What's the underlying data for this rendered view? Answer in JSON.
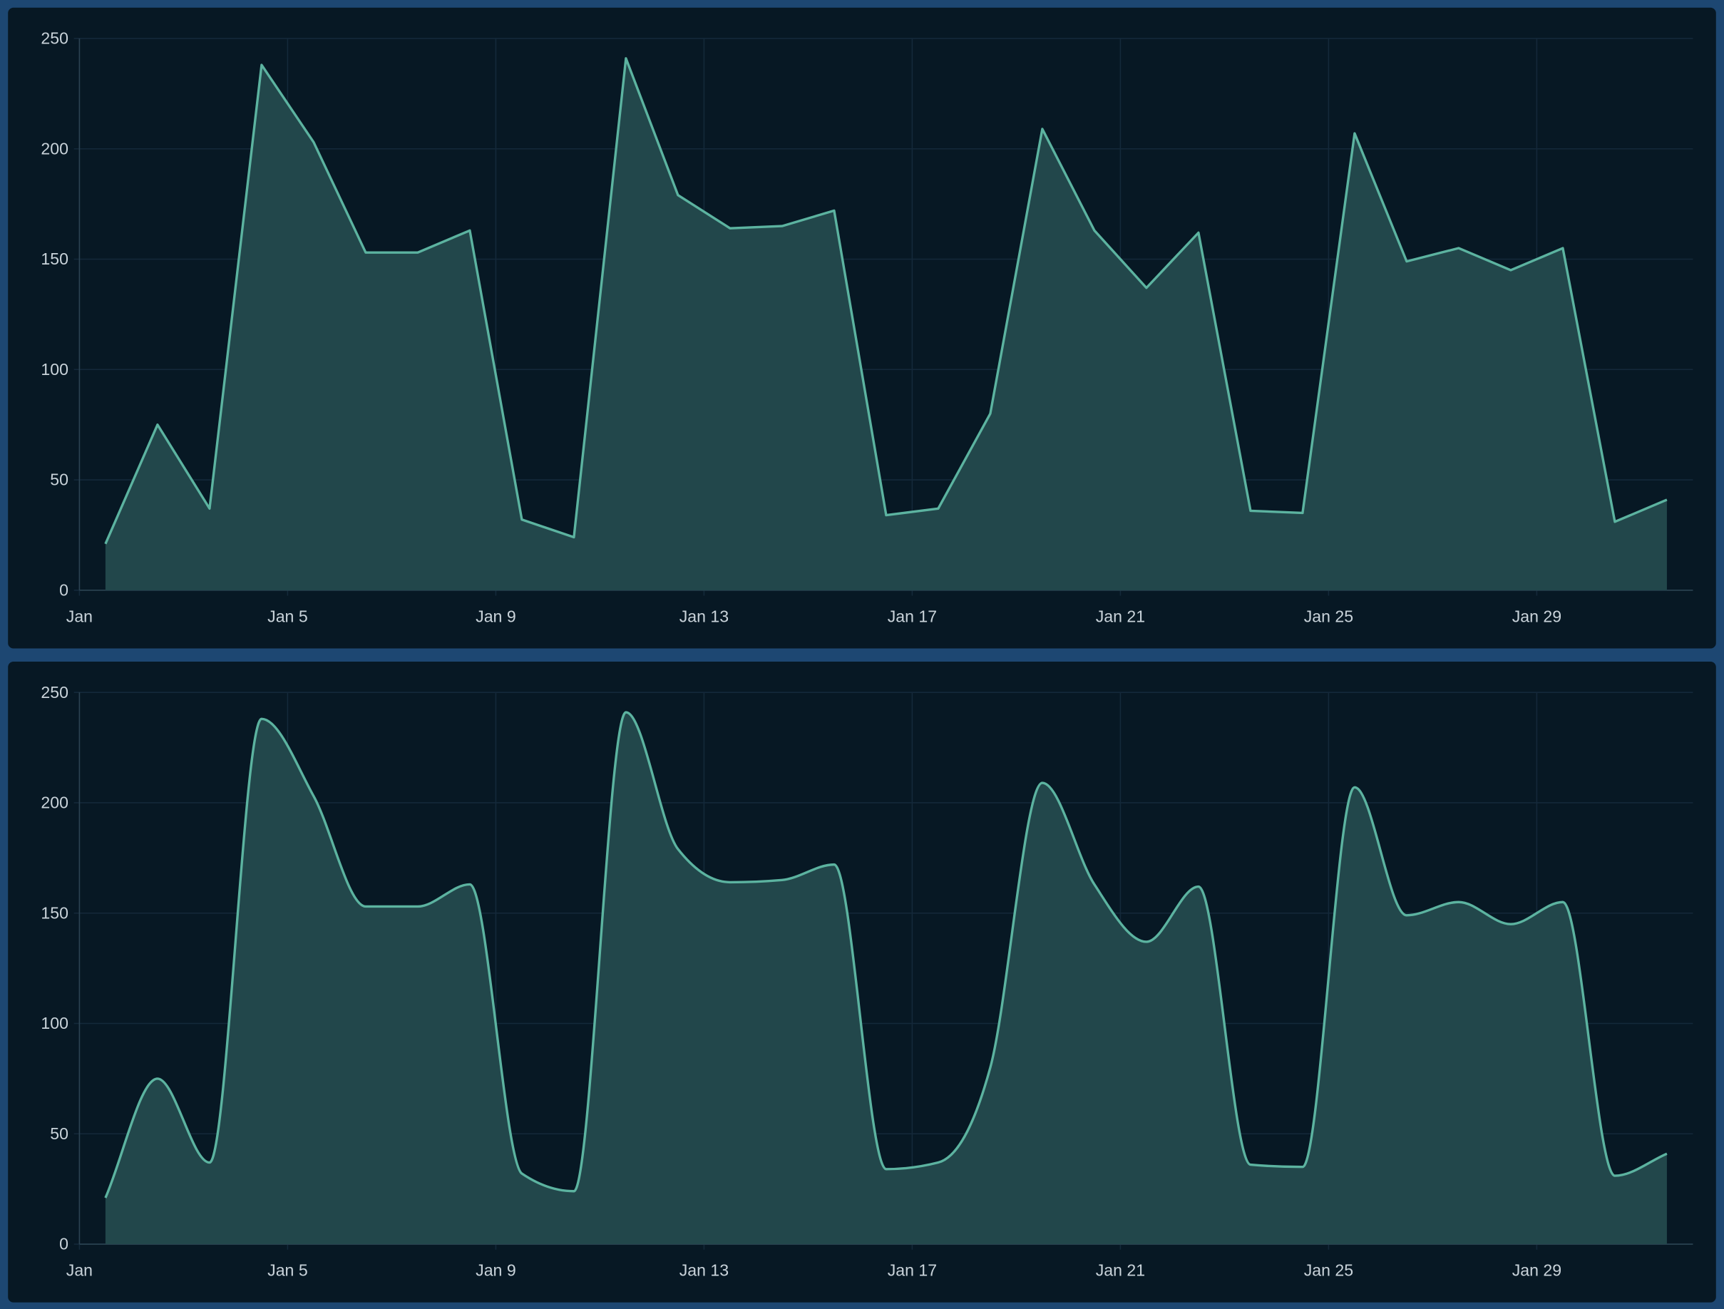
{
  "colors": {
    "background": "#1d4772",
    "panel": "#071824",
    "line": "#5cb3a0",
    "fill": "#22474b",
    "grid": "#14293a",
    "axis": "#2b4352"
  },
  "chart_data": [
    {
      "type": "area",
      "interpolation": "linear",
      "x_start": "Jan 1",
      "x_ticks": [
        "Jan",
        "Jan 5",
        "Jan 9",
        "Jan 13",
        "Jan 17",
        "Jan 21",
        "Jan 25",
        "Jan 29"
      ],
      "y_ticks": [
        "0",
        "50",
        "100",
        "150",
        "200",
        "250"
      ],
      "ylim": [
        0,
        250
      ],
      "grid": true,
      "x": [
        "Jan 1",
        "Jan 2",
        "Jan 3",
        "Jan 4",
        "Jan 5",
        "Jan 6",
        "Jan 7",
        "Jan 8",
        "Jan 9",
        "Jan 10",
        "Jan 11",
        "Jan 12",
        "Jan 13",
        "Jan 14",
        "Jan 15",
        "Jan 16",
        "Jan 17",
        "Jan 18",
        "Jan 19",
        "Jan 20",
        "Jan 21",
        "Jan 22",
        "Jan 23",
        "Jan 24",
        "Jan 25",
        "Jan 26",
        "Jan 27",
        "Jan 28",
        "Jan 29",
        "Jan 30",
        "Jan 31"
      ],
      "values": [
        21,
        75,
        37,
        238,
        203,
        153,
        153,
        163,
        32,
        24,
        241,
        179,
        164,
        165,
        172,
        34,
        37,
        80,
        209,
        163,
        137,
        162,
        36,
        35,
        207,
        149,
        155,
        145,
        155,
        31,
        41
      ]
    },
    {
      "type": "area",
      "interpolation": "smooth",
      "x_start": "Jan 1",
      "x_ticks": [
        "Jan",
        "Jan 5",
        "Jan 9",
        "Jan 13",
        "Jan 17",
        "Jan 21",
        "Jan 25",
        "Jan 29"
      ],
      "y_ticks": [
        "0",
        "50",
        "100",
        "150",
        "200",
        "250"
      ],
      "ylim": [
        0,
        250
      ],
      "grid": true,
      "x": [
        "Jan 1",
        "Jan 2",
        "Jan 3",
        "Jan 4",
        "Jan 5",
        "Jan 6",
        "Jan 7",
        "Jan 8",
        "Jan 9",
        "Jan 10",
        "Jan 11",
        "Jan 12",
        "Jan 13",
        "Jan 14",
        "Jan 15",
        "Jan 16",
        "Jan 17",
        "Jan 18",
        "Jan 19",
        "Jan 20",
        "Jan 21",
        "Jan 22",
        "Jan 23",
        "Jan 24",
        "Jan 25",
        "Jan 26",
        "Jan 27",
        "Jan 28",
        "Jan 29",
        "Jan 30",
        "Jan 31"
      ],
      "values": [
        21,
        75,
        37,
        238,
        203,
        153,
        153,
        163,
        32,
        24,
        241,
        179,
        164,
        165,
        172,
        34,
        37,
        80,
        209,
        163,
        137,
        162,
        36,
        35,
        207,
        149,
        155,
        145,
        155,
        31,
        41
      ]
    }
  ]
}
